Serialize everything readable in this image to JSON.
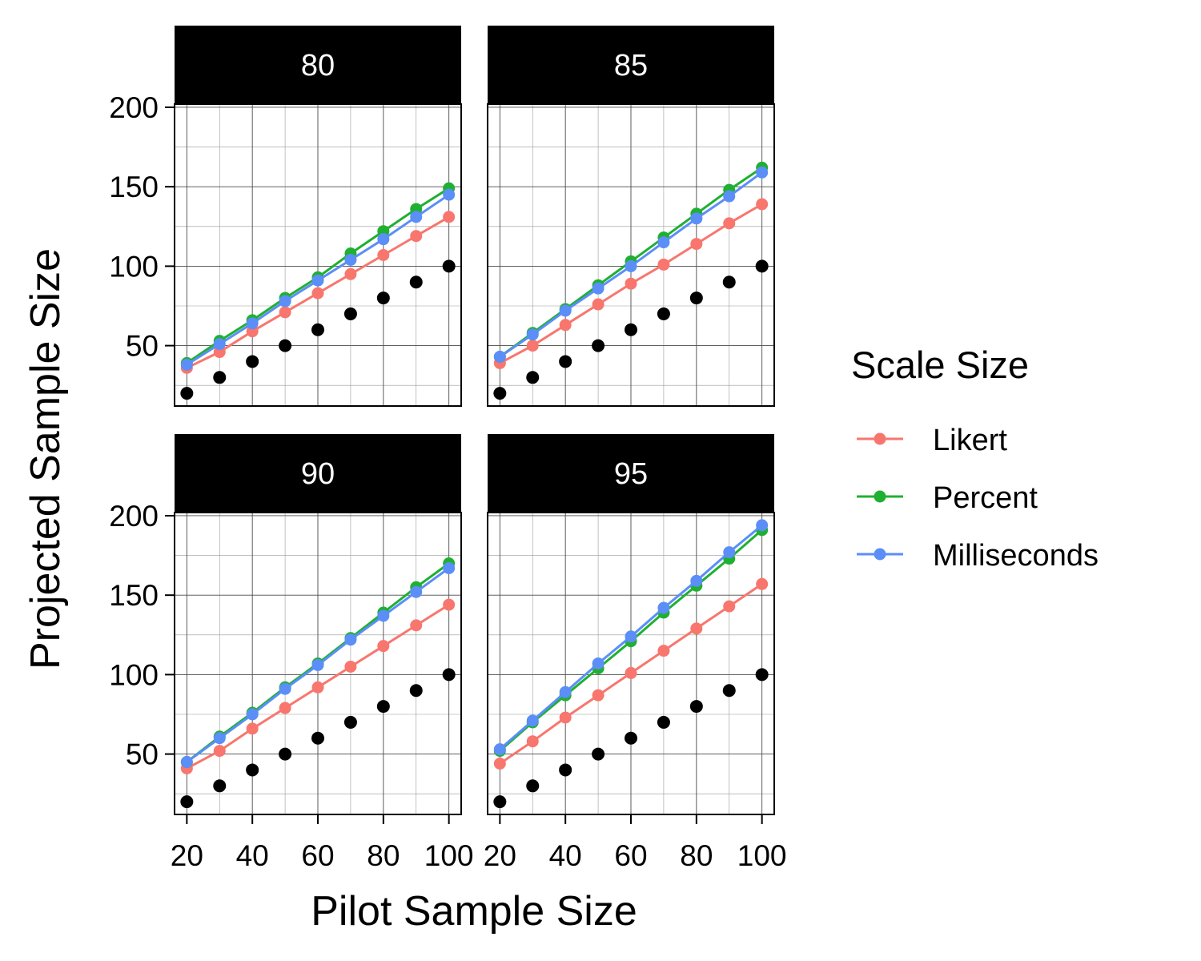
{
  "chart_data": {
    "type": "line",
    "facets": [
      {
        "label": "80",
        "series": [
          {
            "name": "Likert",
            "values": [
              36,
              46,
              59,
              71,
              83,
              95,
              107,
              119,
              131
            ]
          },
          {
            "name": "Percent",
            "values": [
              39,
              53,
              66,
              80,
              93,
              108,
              122,
              136,
              149
            ]
          },
          {
            "name": "Milliseconds",
            "values": [
              38,
              51,
              64,
              78,
              91,
              104,
              117,
              131,
              145
            ]
          }
        ]
      },
      {
        "label": "85",
        "series": [
          {
            "name": "Likert",
            "values": [
              39,
              50,
              63,
              76,
              89,
              101,
              114,
              127,
              139
            ]
          },
          {
            "name": "Percent",
            "values": [
              43,
              58,
              73,
              88,
              103,
              118,
              133,
              148,
              162
            ]
          },
          {
            "name": "Milliseconds",
            "values": [
              43,
              57,
              72,
              86,
              100,
              115,
              130,
              144,
              159
            ]
          }
        ]
      },
      {
        "label": "90",
        "series": [
          {
            "name": "Likert",
            "values": [
              41,
              52,
              66,
              79,
              92,
              105,
              118,
              131,
              144
            ]
          },
          {
            "name": "Percent",
            "values": [
              45,
              61,
              76,
              92,
              107,
              123,
              139,
              155,
              170
            ]
          },
          {
            "name": "Milliseconds",
            "values": [
              45,
              60,
              75,
              91,
              106,
              122,
              137,
              152,
              167
            ]
          }
        ]
      },
      {
        "label": "95",
        "series": [
          {
            "name": "Likert",
            "values": [
              44,
              58,
              73,
              87,
              101,
              115,
              129,
              143,
              157
            ]
          },
          {
            "name": "Percent",
            "values": [
              52,
              70,
              87,
              104,
              121,
              139,
              156,
              173,
              191
            ]
          },
          {
            "name": "Milliseconds",
            "values": [
              53,
              71,
              89,
              107,
              124,
              142,
              159,
              177,
              194
            ]
          }
        ]
      }
    ],
    "reference_points": {
      "x": [
        20,
        30,
        40,
        50,
        60,
        70,
        80,
        90,
        100
      ],
      "y": [
        20,
        30,
        40,
        50,
        60,
        70,
        80,
        90,
        100
      ],
      "color": "#000000"
    },
    "x": [
      20,
      30,
      40,
      50,
      60,
      70,
      80,
      90,
      100
    ],
    "xlabel": "Pilot Sample Size",
    "ylabel": "Projected Sample Size",
    "xlim": [
      16.25,
      103.75
    ],
    "ylim": [
      12,
      202
    ],
    "x_ticks": [
      "20",
      "40",
      "60",
      "80",
      "100"
    ],
    "y_ticks": [
      "50",
      "100",
      "150",
      "200"
    ],
    "grid": true,
    "legend": {
      "title": "Scale Size",
      "position": "right",
      "items": [
        "Likert",
        "Percent",
        "Milliseconds"
      ]
    },
    "colors": {
      "Likert": "#F8766D",
      "Percent": "#1FB031",
      "Milliseconds": "#5B8EF7"
    }
  }
}
